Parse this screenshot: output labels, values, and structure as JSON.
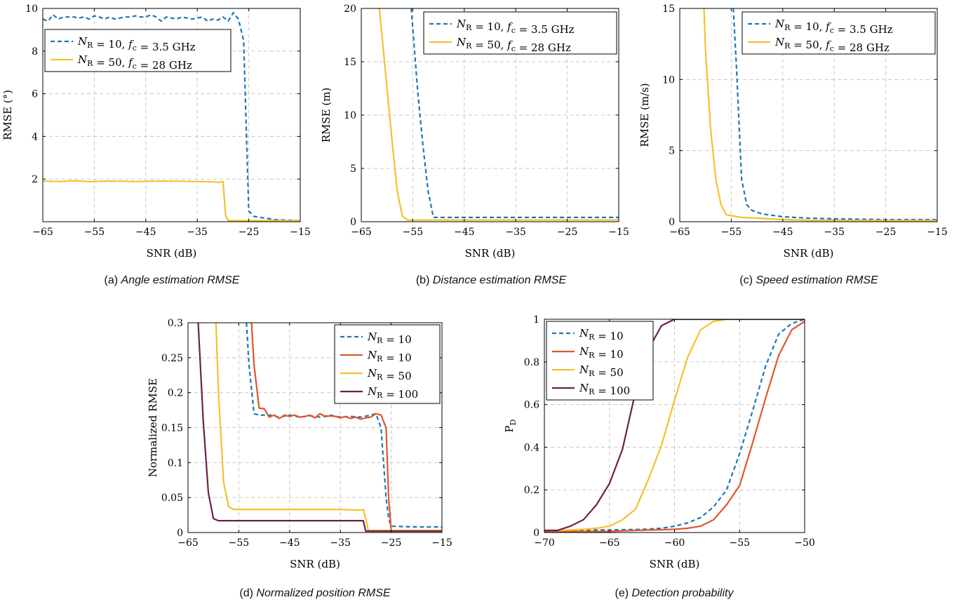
{
  "colors": {
    "blue": "#1f77b4",
    "yellow": "#f2c12e",
    "orange": "#e0562a",
    "purple": "#6b1f4f"
  },
  "chart_data": [
    {
      "id": "a",
      "type": "line",
      "caption": {
        "tag": "(a)",
        "text": "Angle estimation RMSE"
      },
      "xlabel": "SNR (dB)",
      "ylabel": "RMSE (°)",
      "xlim": [
        -65,
        -15
      ],
      "ylim": [
        0,
        10
      ],
      "xticks": [
        -65,
        -55,
        -45,
        -35,
        -25,
        -15
      ],
      "yticks": [
        2,
        4,
        6,
        8,
        10
      ],
      "grid": true,
      "legend_position": "upper-left",
      "series": [
        {
          "legend": "N_R = 10, f_c = 3.5 GHz",
          "color": "blue",
          "dash": true,
          "x": [
            -65,
            -64,
            -63,
            -62,
            -61,
            -60,
            -59,
            -58,
            -57,
            -56,
            -55,
            -54,
            -53,
            -52,
            -51,
            -50,
            -49,
            -48,
            -47,
            -46,
            -45,
            -44,
            -43,
            -42,
            -41,
            -40,
            -39,
            -38,
            -37,
            -36,
            -35,
            -34,
            -33,
            -32,
            -31,
            -30,
            -29,
            -28,
            -27,
            -26,
            -25,
            -24,
            -20,
            -15
          ],
          "y": [
            9.5,
            9.4,
            9.7,
            9.5,
            9.6,
            9.6,
            9.6,
            9.55,
            9.6,
            9.5,
            9.65,
            9.6,
            9.5,
            9.6,
            9.5,
            9.55,
            9.6,
            9.6,
            9.65,
            9.6,
            9.6,
            9.7,
            9.6,
            9.4,
            9.6,
            9.55,
            9.5,
            9.6,
            9.55,
            9.5,
            9.55,
            9.6,
            9.4,
            9.5,
            9.45,
            9.6,
            9.4,
            9.8,
            9.5,
            8.5,
            0.5,
            0.25,
            0.1,
            0.05
          ]
        },
        {
          "legend": "N_R = 50, f_c = 28 GHz",
          "color": "yellow",
          "dash": false,
          "x": [
            -65,
            -62,
            -59,
            -56,
            -53,
            -50,
            -47,
            -44,
            -41,
            -38,
            -35,
            -32,
            -31,
            -30,
            -29.5,
            -29,
            -25,
            -20,
            -15
          ],
          "y": [
            1.9,
            1.88,
            1.92,
            1.88,
            1.9,
            1.9,
            1.88,
            1.9,
            1.9,
            1.9,
            1.88,
            1.87,
            1.85,
            1.88,
            0.3,
            0.05,
            0.05,
            0.05,
            0.05
          ]
        }
      ]
    },
    {
      "id": "b",
      "type": "line",
      "caption": {
        "tag": "(b)",
        "text": "Distance estimation RMSE"
      },
      "xlabel": "SNR (dB)",
      "ylabel": "RMSE (m)",
      "xlim": [
        -65,
        -15
      ],
      "ylim": [
        0,
        20
      ],
      "xticks": [
        -65,
        -55,
        -45,
        -35,
        -25,
        -15
      ],
      "yticks": [
        0,
        5,
        10,
        15,
        20
      ],
      "grid": true,
      "legend_position": "top-right",
      "series": [
        {
          "legend": "N_R = 10, f_c = 3.5 GHz",
          "color": "blue",
          "dash": true,
          "x": [
            -55.3,
            -54,
            -53,
            -52,
            -51,
            -45,
            -35,
            -25,
            -15
          ],
          "y": [
            20,
            12,
            7,
            2.8,
            0.4,
            0.4,
            0.4,
            0.4,
            0.4
          ]
        },
        {
          "legend": "N_R = 50, f_c = 28 GHz",
          "color": "yellow",
          "dash": false,
          "x": [
            -61.5,
            -61,
            -60,
            -59,
            -58,
            -57,
            -56,
            -55,
            -45,
            -35,
            -15
          ],
          "y": [
            20,
            17.5,
            12.5,
            7.5,
            2.8,
            0.5,
            0.15,
            0.15,
            0.15,
            0.15,
            0.15
          ]
        }
      ]
    },
    {
      "id": "c",
      "type": "line",
      "caption": {
        "tag": "(c)",
        "text": "Speed estimation RMSE"
      },
      "xlabel": "SNR (dB)",
      "ylabel": "RMSE (m/s)",
      "xlim": [
        -65,
        -15
      ],
      "ylim": [
        0,
        15
      ],
      "xticks": [
        -65,
        -55,
        -45,
        -35,
        -25,
        -15
      ],
      "yticks": [
        0,
        5,
        10,
        15
      ],
      "grid": true,
      "legend_position": "top-right",
      "series": [
        {
          "legend": "N_R = 10, f_c = 3.5 GHz",
          "color": "blue",
          "dash": true,
          "x": [
            -54.6,
            -54,
            -53,
            -52,
            -51,
            -49,
            -45,
            -40,
            -35,
            -25,
            -15
          ],
          "y": [
            15,
            11,
            3,
            1.2,
            0.8,
            0.55,
            0.35,
            0.25,
            0.2,
            0.15,
            0.15
          ]
        },
        {
          "legend": "N_R = 50, f_c = 28 GHz",
          "color": "yellow",
          "dash": false,
          "x": [
            -60.3,
            -60,
            -59,
            -58,
            -57,
            -56,
            -53,
            -50,
            -45,
            -40,
            -35,
            -25,
            -15
          ],
          "y": [
            15,
            12,
            6.5,
            3,
            1.2,
            0.5,
            0.3,
            0.25,
            0.15,
            0.1,
            0.1,
            0.08,
            0.08
          ]
        }
      ]
    },
    {
      "id": "d",
      "type": "line",
      "caption": {
        "tag": "(d)",
        "text": "Normalized position RMSE"
      },
      "xlabel": "SNR (dB)",
      "ylabel": "Normalized RMSE",
      "xlim": [
        -65,
        -15
      ],
      "ylim": [
        0,
        0.3
      ],
      "xticks": [
        -65,
        -55,
        -45,
        -35,
        -25,
        -15
      ],
      "yticks": [
        0,
        0.05,
        0.1,
        0.15,
        0.2,
        0.25,
        0.3
      ],
      "grid": true,
      "legend_position": "top-right",
      "series": [
        {
          "legend": "N_R = 10",
          "color": "blue",
          "dash": true,
          "x": [
            -53.5,
            -53,
            -52,
            -51,
            -49,
            -47,
            -45,
            -43,
            -41,
            -39,
            -37,
            -35,
            -33,
            -31,
            -29,
            -28,
            -27,
            -26,
            -25.5,
            -25,
            -20,
            -15
          ],
          "y": [
            0.3,
            0.24,
            0.17,
            0.168,
            0.168,
            0.165,
            0.168,
            0.165,
            0.167,
            0.165,
            0.168,
            0.165,
            0.166,
            0.165,
            0.168,
            0.17,
            0.15,
            0.05,
            0.02,
            0.009,
            0.008,
            0.008
          ]
        },
        {
          "legend": "N_R = 10",
          "color": "orange",
          "dash": false,
          "x": [
            -52.5,
            -52,
            -51,
            -50,
            -49,
            -48,
            -47,
            -46,
            -45,
            -44,
            -43,
            -42,
            -41,
            -40,
            -39,
            -38,
            -37,
            -36,
            -35,
            -34,
            -33,
            -32,
            -31,
            -30,
            -29,
            -28,
            -27,
            -26,
            -25.5,
            -25,
            -20,
            -15
          ],
          "y": [
            0.3,
            0.24,
            0.178,
            0.177,
            0.165,
            0.168,
            0.163,
            0.168,
            0.166,
            0.168,
            0.165,
            0.166,
            0.168,
            0.164,
            0.17,
            0.166,
            0.167,
            0.166,
            0.164,
            0.166,
            0.163,
            0.165,
            0.162,
            0.164,
            0.165,
            0.17,
            0.168,
            0.15,
            0.05,
            0.003,
            0.003,
            0.003
          ]
        },
        {
          "legend": "N_R = 50",
          "color": "yellow",
          "dash": false,
          "x": [
            -59.5,
            -59,
            -58,
            -57,
            -56,
            -54,
            -50,
            -45,
            -40,
            -35,
            -31,
            -30.5,
            -30,
            -29.5,
            -25,
            -15
          ],
          "y": [
            0.3,
            0.2,
            0.072,
            0.037,
            0.033,
            0.033,
            0.033,
            0.033,
            0.033,
            0.033,
            0.032,
            0.033,
            0.02,
            0.003,
            0.003,
            0.003
          ]
        },
        {
          "legend": "N_R = 100",
          "color": "purple",
          "dash": false,
          "x": [
            -63,
            -62,
            -61,
            -60,
            -59,
            -55,
            -50,
            -45,
            -40,
            -35,
            -31,
            -30.5,
            -30,
            -25,
            -15
          ],
          "y": [
            0.3,
            0.16,
            0.057,
            0.02,
            0.017,
            0.017,
            0.017,
            0.017,
            0.017,
            0.017,
            0.017,
            0.017,
            0.002,
            0.002,
            0.002
          ]
        }
      ]
    },
    {
      "id": "e",
      "type": "line",
      "caption": {
        "tag": "(e)",
        "text": "Detection probability"
      },
      "xlabel": "SNR (dB)",
      "ylabel": "P_D",
      "xlim": [
        -70,
        -50
      ],
      "ylim": [
        0,
        1
      ],
      "xticks": [
        -70,
        -65,
        -60,
        -55,
        -50
      ],
      "yticks": [
        0,
        0.2,
        0.4,
        0.6,
        0.8,
        1
      ],
      "grid": true,
      "legend_position": "upper-left",
      "series": [
        {
          "legend": "N_R = 10",
          "color": "blue",
          "dash": true,
          "x": [
            -70,
            -69,
            -68,
            -67,
            -66,
            -65,
            -64,
            -63,
            -62,
            -61,
            -60,
            -59,
            -58,
            -57,
            -56,
            -55,
            -54,
            -53,
            -52,
            -51,
            -50
          ],
          "y": [
            0.01,
            0.01,
            0.01,
            0.01,
            0.012,
            0.012,
            0.013,
            0.014,
            0.016,
            0.02,
            0.03,
            0.045,
            0.07,
            0.12,
            0.2,
            0.37,
            0.57,
            0.78,
            0.93,
            0.98,
            1.0
          ]
        },
        {
          "legend": "N_R = 10",
          "color": "orange",
          "dash": false,
          "x": [
            -70,
            -69,
            -68,
            -67,
            -66,
            -65,
            -64,
            -63,
            -62,
            -61,
            -60,
            -59,
            -58,
            -57,
            -56,
            -55,
            -54,
            -53,
            -52,
            -51,
            -50
          ],
          "y": [
            0.005,
            0.005,
            0.005,
            0.005,
            0.005,
            0.005,
            0.008,
            0.01,
            0.012,
            0.013,
            0.015,
            0.02,
            0.03,
            0.06,
            0.13,
            0.22,
            0.42,
            0.63,
            0.83,
            0.95,
            0.99
          ]
        },
        {
          "legend": "N_R = 50",
          "color": "yellow",
          "dash": false,
          "x": [
            -70,
            -69,
            -68,
            -67,
            -66,
            -65,
            -64,
            -63,
            -62,
            -61,
            -60,
            -59,
            -58,
            -57,
            -56,
            -55,
            -54,
            -53,
            -52,
            -51,
            -50
          ],
          "y": [
            0.01,
            0.01,
            0.012,
            0.015,
            0.02,
            0.03,
            0.06,
            0.11,
            0.25,
            0.41,
            0.62,
            0.82,
            0.95,
            0.99,
            1,
            1,
            1,
            1,
            1,
            1,
            1
          ]
        },
        {
          "legend": "N_R = 100",
          "color": "purple",
          "dash": false,
          "x": [
            -70,
            -69,
            -68,
            -67,
            -66,
            -65,
            -64,
            -63,
            -62,
            -61,
            -60,
            -59,
            -58,
            -57,
            -56,
            -55,
            -54,
            -53,
            -52,
            -51,
            -50
          ],
          "y": [
            0.01,
            0.01,
            0.03,
            0.06,
            0.13,
            0.23,
            0.39,
            0.66,
            0.86,
            0.97,
            1,
            1,
            1,
            1,
            1,
            1,
            1,
            1,
            1,
            1,
            1
          ]
        }
      ]
    }
  ]
}
